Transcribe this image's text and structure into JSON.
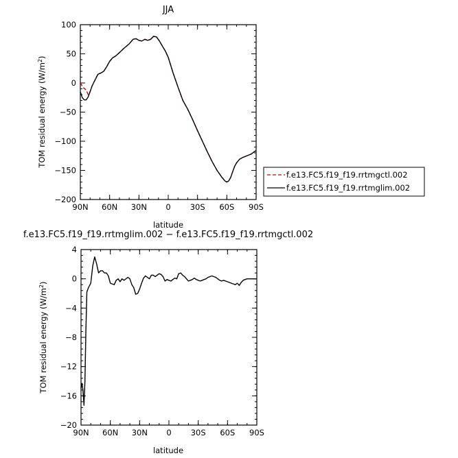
{
  "chart_data": [
    {
      "type": "line",
      "title": "JJA",
      "xlabel": "latitude",
      "ylabel": "TOM residual energy (W/m²)",
      "ylabel_main": "TOM residual energy (W/m",
      "ylabel_sup": "2",
      "ylabel_end": ")",
      "xlim": [
        90,
        -90
      ],
      "ylim": [
        -200,
        100
      ],
      "xticks": [
        90,
        60,
        30,
        0,
        -30,
        -60,
        -90
      ],
      "xtick_labels": [
        "90N",
        "60N",
        "30N",
        "0",
        "30S",
        "60S",
        "90S"
      ],
      "yticks": [
        100,
        50,
        0,
        -50,
        -100,
        -150,
        -200
      ],
      "ytick_labels": [
        "100",
        "50",
        "0",
        "−50",
        "−100",
        "−150",
        "−200"
      ],
      "legend_position": "right, outside",
      "series": [
        {
          "name": "f.e13.FC5.f19_f19.rrtmgctl.002",
          "color": "#cc0000",
          "style": "dashed",
          "x": [
            90,
            87,
            84,
            82,
            80,
            78,
            75,
            72,
            69,
            66,
            63,
            60,
            57,
            54,
            50,
            45,
            40,
            36,
            33,
            30,
            27,
            24,
            21,
            18,
            15,
            12,
            9,
            6,
            3,
            0,
            -5,
            -10,
            -15,
            -20,
            -25,
            -30,
            -35,
            -40,
            -45,
            -50,
            -55,
            -58,
            -60,
            -62,
            -64,
            -66,
            -68,
            -70,
            -73,
            -76,
            -79,
            -82,
            -85,
            -88,
            -90
          ],
          "y": [
            0,
            -8,
            -12,
            -20,
            -15,
            -5,
            5,
            15,
            17,
            20,
            28,
            37,
            43,
            46,
            52,
            60,
            67,
            75,
            76,
            73,
            72,
            75,
            73,
            75,
            80,
            79,
            72,
            63,
            55,
            44,
            17,
            -7,
            -30,
            -45,
            -63,
            -82,
            -100,
            -118,
            -135,
            -150,
            -162,
            -168,
            -170,
            -168,
            -162,
            -152,
            -143,
            -137,
            -131,
            -128,
            -126,
            -124,
            -122,
            -118,
            -116
          ]
        },
        {
          "name": "f.e13.FC5.f19_f19.rrtmglim.002",
          "color": "#000000",
          "style": "solid",
          "x": [
            90,
            88,
            86,
            84,
            82,
            80,
            78,
            75,
            72,
            69,
            66,
            63,
            60,
            57,
            54,
            50,
            45,
            40,
            36,
            33,
            30,
            27,
            24,
            21,
            18,
            15,
            12,
            9,
            6,
            3,
            0,
            -5,
            -10,
            -15,
            -20,
            -25,
            -30,
            -35,
            -40,
            -45,
            -50,
            -55,
            -58,
            -60,
            -62,
            -64,
            -66,
            -68,
            -70,
            -73,
            -76,
            -79,
            -82,
            -85,
            -88,
            -90
          ],
          "y": [
            -15,
            -25,
            -29,
            -29,
            -24,
            -15,
            -5,
            5,
            15,
            17,
            20,
            28,
            37,
            43,
            46,
            52,
            60,
            67,
            75,
            76,
            73,
            72,
            75,
            73,
            75,
            80,
            79,
            72,
            63,
            55,
            44,
            17,
            -7,
            -30,
            -45,
            -63,
            -82,
            -100,
            -118,
            -135,
            -150,
            -162,
            -168,
            -170,
            -168,
            -162,
            -152,
            -143,
            -137,
            -131,
            -128,
            -126,
            -124,
            -122,
            -118,
            -116
          ]
        }
      ]
    },
    {
      "type": "line",
      "title": "f.e13.FC5.f19_f19.rrtmglim.002 − f.e13.FC5.f19_f19.rrtmgctl.002",
      "xlabel": "latitude",
      "ylabel": "TOM residual energy (W/m²)",
      "ylabel_main": "TOM residual energy (W/m",
      "ylabel_sup": "2",
      "ylabel_end": ")",
      "xlim": [
        90,
        -90
      ],
      "ylim": [
        -20,
        4
      ],
      "xticks": [
        90,
        60,
        30,
        0,
        -30,
        -60,
        -90
      ],
      "xtick_labels": [
        "90N",
        "60N",
        "30N",
        "0",
        "30S",
        "60S",
        "90S"
      ],
      "yticks": [
        4,
        0,
        -4,
        -8,
        -12,
        -16,
        -20
      ],
      "ytick_labels": [
        "4",
        "0",
        "−4",
        "−8",
        "−12",
        "−16",
        "−20"
      ],
      "series": [
        {
          "color": "#000000",
          "style": "solid",
          "x": [
            90,
            89,
            88,
            87,
            86,
            85,
            84,
            83,
            82,
            80,
            78,
            76,
            74,
            72,
            70,
            68,
            66,
            64,
            62,
            60,
            58,
            56,
            54,
            52,
            50,
            48,
            46,
            44,
            42,
            40,
            38,
            36,
            34,
            32,
            30,
            28,
            26,
            24,
            22,
            20,
            18,
            16,
            14,
            12,
            10,
            8,
            6,
            4,
            2,
            0,
            -2,
            -4,
            -6,
            -8,
            -10,
            -12,
            -14,
            -16,
            -18,
            -20,
            -22,
            -24,
            -26,
            -28,
            -30,
            -32,
            -34,
            -36,
            -38,
            -40,
            -42,
            -44,
            -46,
            -48,
            -50,
            -52,
            -54,
            -56,
            -58,
            -60,
            -62,
            -64,
            -66,
            -68,
            -70,
            -72,
            -74,
            -76,
            -78,
            -80,
            -82,
            -84,
            -86,
            -88,
            -90
          ],
          "y": [
            -15,
            -14.3,
            -15.2,
            -17.3,
            -14,
            -7,
            -1.8,
            -1.4,
            -1.1,
            -0.6,
            1.8,
            3.0,
            2.0,
            0.8,
            1.1,
            1.1,
            0.8,
            0.8,
            0.4,
            -0.6,
            -0.7,
            -0.8,
            -0.2,
            0,
            -0.4,
            0,
            -0.2,
            0,
            0.2,
            0,
            -0.8,
            -1.2,
            -2.1,
            -2.0,
            -1.4,
            -0.6,
            0.1,
            0.4,
            0.2,
            0,
            0.5,
            0.5,
            0.3,
            0.5,
            0.7,
            0.6,
            0.3,
            -0.3,
            -0.1,
            -0.2,
            -0.3,
            -0.1,
            0.1,
            0,
            0.7,
            0.8,
            0.5,
            0.3,
            0,
            -0.3,
            -0.2,
            -0.1,
            0.1,
            -0.1,
            -0.2,
            -0.3,
            -0.2,
            -0.1,
            0,
            0.2,
            0.3,
            0.4,
            0.3,
            0.2,
            0,
            -0.2,
            -0.3,
            -0.2,
            -0.3,
            -0.4,
            -0.5,
            -0.6,
            -0.7,
            -0.8,
            -0.6,
            -0.9,
            -0.5,
            -0.2,
            -0.1,
            0,
            0,
            0,
            0,
            0,
            0
          ]
        }
      ]
    }
  ]
}
